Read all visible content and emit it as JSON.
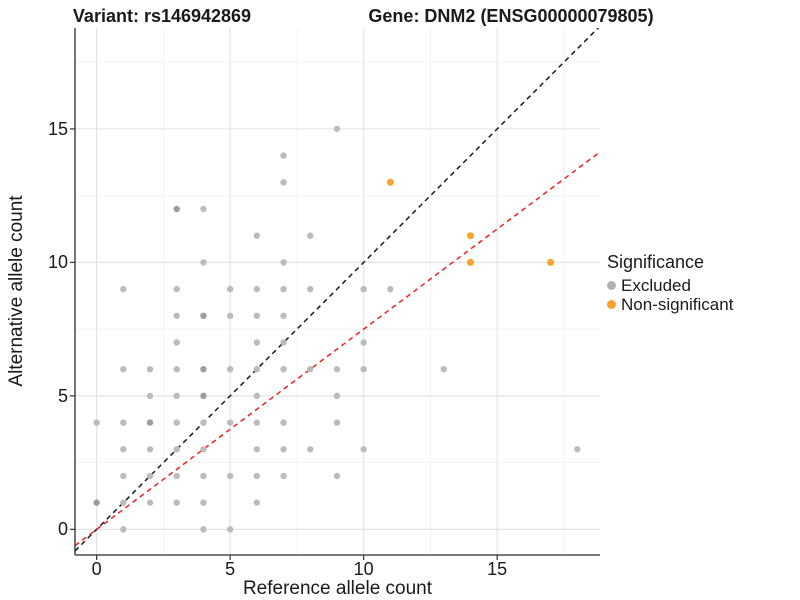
{
  "titles": {
    "left": "Variant: rs146942869",
    "right": "Gene: DNM2 (ENSG00000079805)"
  },
  "axes": {
    "x_label": "Reference allele count",
    "y_label": "Alternative allele count",
    "x_major_ticks": [
      0,
      5,
      10,
      15
    ],
    "x_minor_ticks": [
      2.5,
      7.5,
      12.5,
      17.5
    ],
    "y_major_ticks": [
      0,
      5,
      10,
      15
    ],
    "y_minor_ticks": [
      2.5,
      7.5,
      12.5,
      17.5
    ]
  },
  "legend": {
    "title": "Significance",
    "items": [
      {
        "label": "Excluded",
        "color": "#b2b2b2"
      },
      {
        "label": "Non-significant",
        "color": "#faa32c"
      }
    ]
  },
  "colors": {
    "background": "#ffffff",
    "grid_major": "#e4e4e4",
    "grid_minor": "#f2f2f2",
    "axis_line": "#2a2a2a",
    "tick_mark": "#333333",
    "excluded": "#bcbcbc",
    "excluded_dark": "#9c9c9c",
    "non_significant": "#faa32c",
    "identity_line": "#1a1a1a",
    "ratio_line": "#ee2222"
  },
  "chart_data": {
    "type": "scatter",
    "title_left": "Variant: rs146942869",
    "title_right": "Gene: DNM2 (ENSG00000079805)",
    "xlabel": "Reference allele count",
    "ylabel": "Alternative allele count",
    "xlim": [
      -0.81,
      18.85
    ],
    "ylim": [
      -0.96,
      18.78
    ],
    "grid": true,
    "legend_position": "right",
    "series": [
      {
        "name": "Excluded",
        "color": "#bcbcbc",
        "note": "points given as [ref_count, alt_count, darkness]; darkness 2 = visibly darker (overplotted)",
        "points": [
          [
            1,
            0,
            1
          ],
          [
            4,
            0,
            1
          ],
          [
            5,
            0,
            1
          ],
          [
            0,
            1,
            2
          ],
          [
            1,
            1,
            1
          ],
          [
            2,
            1,
            1
          ],
          [
            3,
            1,
            1
          ],
          [
            4,
            1,
            1
          ],
          [
            6,
            1,
            1
          ],
          [
            1,
            2,
            1
          ],
          [
            2,
            2,
            1
          ],
          [
            3,
            2,
            1
          ],
          [
            4,
            2,
            1
          ],
          [
            5,
            2,
            1
          ],
          [
            6,
            2,
            1
          ],
          [
            7,
            2,
            1
          ],
          [
            9,
            2,
            1
          ],
          [
            1,
            3,
            1
          ],
          [
            2,
            3,
            1
          ],
          [
            3,
            3,
            1
          ],
          [
            4,
            3,
            1
          ],
          [
            6,
            3,
            1
          ],
          [
            7,
            3,
            1
          ],
          [
            8,
            3,
            1
          ],
          [
            10,
            3,
            1
          ],
          [
            18,
            3,
            1
          ],
          [
            0,
            4,
            1
          ],
          [
            1,
            4,
            1
          ],
          [
            2,
            4,
            2
          ],
          [
            3,
            4,
            1
          ],
          [
            4,
            4,
            1
          ],
          [
            5,
            4,
            1
          ],
          [
            6,
            4,
            1
          ],
          [
            7,
            4,
            1
          ],
          [
            9,
            4,
            1
          ],
          [
            2,
            5,
            1
          ],
          [
            3,
            5,
            1
          ],
          [
            4,
            5,
            2
          ],
          [
            6,
            5,
            1
          ],
          [
            9,
            5,
            1
          ],
          [
            1,
            6,
            1
          ],
          [
            2,
            6,
            1
          ],
          [
            3,
            6,
            1
          ],
          [
            4,
            6,
            2
          ],
          [
            5,
            6,
            1
          ],
          [
            6,
            6,
            1
          ],
          [
            7,
            6,
            1
          ],
          [
            8,
            6,
            1
          ],
          [
            9,
            6,
            1
          ],
          [
            10,
            6,
            1
          ],
          [
            13,
            6,
            1
          ],
          [
            3,
            7,
            1
          ],
          [
            6,
            7,
            1
          ],
          [
            7,
            7,
            1
          ],
          [
            10,
            7,
            1
          ],
          [
            3,
            8,
            1
          ],
          [
            4,
            8,
            2
          ],
          [
            5,
            8,
            1
          ],
          [
            6,
            8,
            1
          ],
          [
            7,
            8,
            1
          ],
          [
            1,
            9,
            1
          ],
          [
            3,
            9,
            1
          ],
          [
            5,
            9,
            1
          ],
          [
            6,
            9,
            1
          ],
          [
            7,
            9,
            1
          ],
          [
            8,
            9,
            1
          ],
          [
            10,
            9,
            1
          ],
          [
            11,
            9,
            1
          ],
          [
            4,
            10,
            1
          ],
          [
            7,
            10,
            1
          ],
          [
            6,
            11,
            1
          ],
          [
            8,
            11,
            1
          ],
          [
            3,
            12,
            2
          ],
          [
            4,
            12,
            1
          ],
          [
            7,
            13,
            1
          ],
          [
            7,
            14,
            1
          ],
          [
            9,
            15,
            1
          ]
        ]
      },
      {
        "name": "Non-significant",
        "color": "#faa32c",
        "points": [
          [
            11,
            13,
            1
          ],
          [
            14,
            11,
            1
          ],
          [
            14,
            10,
            1
          ],
          [
            17,
            10,
            1
          ]
        ]
      }
    ],
    "lines": [
      {
        "name": "identity-line",
        "slope": 1.0,
        "intercept": 0,
        "color": "#1a1a1a",
        "style": "dashed"
      },
      {
        "name": "ratio-line",
        "slope": 0.75,
        "intercept": 0,
        "color": "#ee2222",
        "style": "dashed"
      }
    ]
  }
}
